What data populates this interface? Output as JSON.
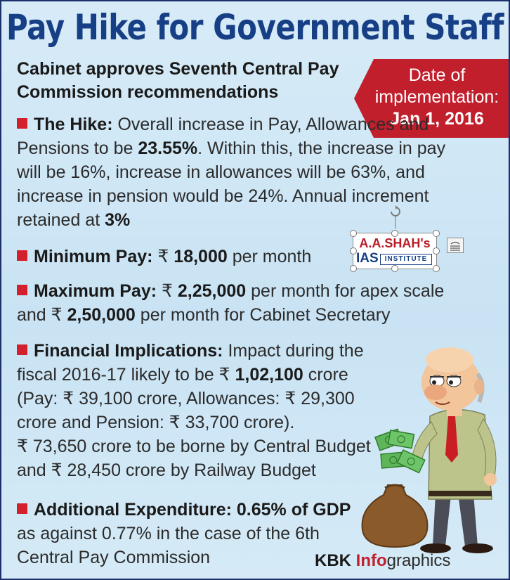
{
  "title": "Pay Hike for Government Staff",
  "subtitle": "Cabinet approves Seventh Central Pay Commission recommendations",
  "date_badge": {
    "label": "Date of implementation:",
    "value": "Jan 1, 2016"
  },
  "sections": {
    "hike": {
      "label": "The Hike:",
      "t1": " Overall increase in Pay, Allowances and Pensions to be ",
      "b1": "23.55%",
      "t2": ". Within this, the increase in pay will be 16%, increase in allowances will be 63%, and increase in pension would be 24%. Annual increment retained at ",
      "b2": "3%"
    },
    "minimum_pay": {
      "label": "Minimum Pay:",
      "t1": " ₹ ",
      "b1": "18,000",
      "t2": " per month"
    },
    "maximum_pay": {
      "label": "Maximum Pay:",
      "t1": " ₹ ",
      "b1": "2,25,000",
      "t2": " per month for apex scale and ₹ ",
      "b2": "2,50,000",
      "t3": " per month for Cabinet Secretary"
    },
    "financial": {
      "label": "Financial Implications:",
      "t1": " Impact during the fiscal 2016-17 likely to be ₹ ",
      "b1": "1,02,100",
      "t2": " crore",
      "line2": "(Pay: ₹ 39,100 crore, Allowances: ₹ 29,300 crore and Pension: ₹ 33,700 crore).",
      "line3": "₹ 73,650 crore to be borne by Central Budget and ₹ 28,450 crore by Railway Budget"
    },
    "additional": {
      "label": "Additional Expenditure: 0.65% of GDP",
      "t1": "as against 0.77% in the case of the 6th Central Pay Commission"
    }
  },
  "watermark": {
    "top": "A.A.SHAH's",
    "bottom": "IAS",
    "sub": "INSTITUTE"
  },
  "credit": {
    "part1": "KBK ",
    "part2": "Info",
    "part3": "graphics"
  },
  "colors": {
    "title": "#173f86",
    "accent_red": "#c21f2d",
    "background": "#d0e7f5"
  }
}
